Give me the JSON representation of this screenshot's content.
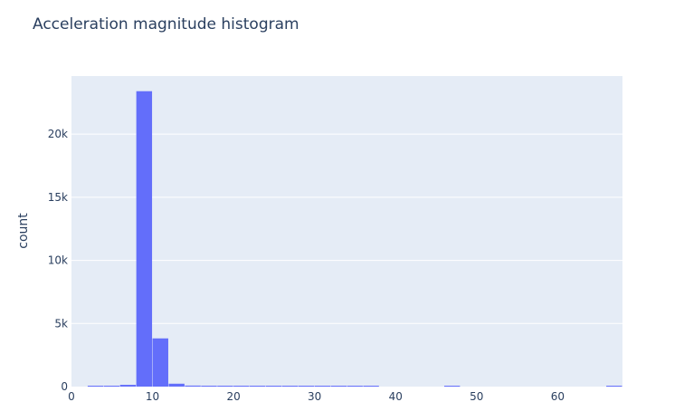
{
  "chart_data": {
    "type": "bar",
    "title": "Acceleration magnitude histogram",
    "xlabel": "",
    "ylabel": "count",
    "bin_width": 2,
    "bins_start": [
      0,
      2,
      4,
      6,
      8,
      10,
      12,
      14,
      16,
      18,
      20,
      22,
      24,
      26,
      28,
      30,
      32,
      34,
      36,
      38,
      40,
      42,
      44,
      46,
      48,
      50,
      52,
      54,
      56,
      58,
      60,
      62,
      64,
      66
    ],
    "values": [
      0,
      2,
      40,
      140,
      23400,
      3820,
      230,
      80,
      30,
      18,
      15,
      12,
      10,
      10,
      8,
      8,
      6,
      6,
      5,
      0,
      0,
      0,
      0,
      12,
      0,
      0,
      0,
      0,
      0,
      0,
      0,
      0,
      0,
      6
    ],
    "xlim": [
      0,
      68
    ],
    "ylim": [
      0,
      24600
    ],
    "x_ticks": [
      0,
      10,
      20,
      30,
      40,
      50,
      60
    ],
    "x_tick_labels": [
      "0",
      "10",
      "20",
      "30",
      "40",
      "50",
      "60"
    ],
    "y_ticks": [
      0,
      5000,
      10000,
      15000,
      20000
    ],
    "y_tick_labels": [
      "0",
      "5k",
      "10k",
      "15k",
      "20k"
    ],
    "grid": true,
    "colors": {
      "bar": "#636efa",
      "plot_bg": "#e5ecf6",
      "grid": "#ffffff",
      "text": "#2a3f5f"
    }
  }
}
